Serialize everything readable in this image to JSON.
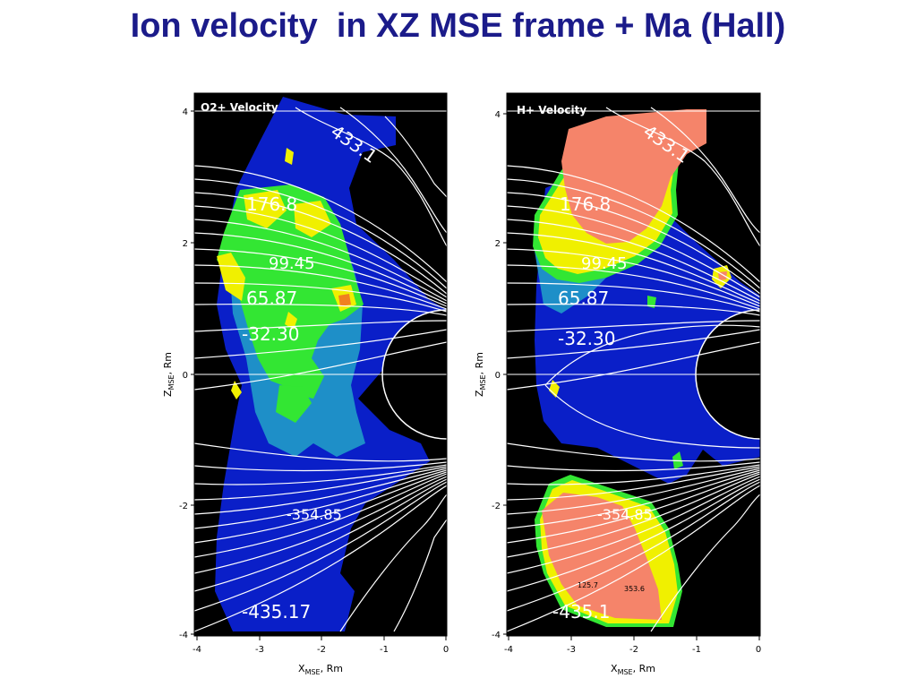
{
  "title": "Ion velocity  in XZ MSE frame + Ma (Hall)",
  "panels": [
    {
      "label": "O2+ Velocity",
      "x_ticks": [
        "-4",
        "-3",
        "-2",
        "-1",
        "0"
      ],
      "y_ticks": [
        "4",
        "2",
        "0",
        "-2",
        "-4"
      ],
      "x_axis_label": "X",
      "x_axis_sub": "MSE",
      "x_axis_unit": ", Rm",
      "y_axis_label": "Z",
      "y_axis_sub": "MSE",
      "y_axis_unit": ", Rm",
      "contour_labels": [
        "433.1",
        "176.8",
        "99.45",
        "65.87",
        "-32.30",
        "-354.85",
        "-435.17"
      ],
      "colors": {
        "background": "#000000",
        "low": "#0a1fc8",
        "mid": "#1e8fc8",
        "high": "#33e633",
        "peak": "#f0f000"
      }
    },
    {
      "label": "H+ Velocity",
      "x_ticks": [
        "-4",
        "-3",
        "-2",
        "-1",
        "0"
      ],
      "y_ticks": [
        "4",
        "2",
        "0",
        "-2",
        "-4"
      ],
      "x_axis_label": "X",
      "x_axis_sub": "MSE",
      "x_axis_unit": ", Rm",
      "y_axis_label": "Z",
      "y_axis_sub": "MSE",
      "y_axis_unit": ", Rm",
      "contour_labels": [
        "433.1",
        "176.8",
        "99.45",
        "65.87",
        "-32.30",
        "-354.85",
        "-435.1",
        "353.6",
        "125.7"
      ],
      "colors": {
        "background": "#000000",
        "low": "#0a1fc8",
        "mid": "#1e8fc8",
        "high": "#f5846a",
        "peak": "#f0f000"
      }
    }
  ]
}
